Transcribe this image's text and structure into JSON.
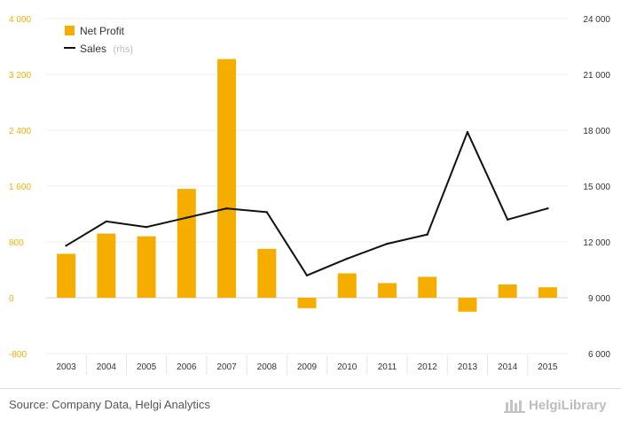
{
  "chart_data": {
    "type": "bar",
    "title": "",
    "categories": [
      "2003",
      "2004",
      "2005",
      "2006",
      "2007",
      "2008",
      "2009",
      "2010",
      "2011",
      "2012",
      "2013",
      "2014",
      "2015"
    ],
    "series": [
      {
        "name": "Net Profit",
        "type": "bar",
        "axis": "left",
        "color": "#f5ae00",
        "values": [
          630,
          920,
          880,
          1560,
          3420,
          700,
          -150,
          350,
          210,
          300,
          -200,
          190,
          150
        ]
      },
      {
        "name": "Sales",
        "name_suffix": "(rhs)",
        "type": "line",
        "axis": "right",
        "color": "#111111",
        "values": [
          11800,
          13100,
          12800,
          13300,
          13800,
          13600,
          10200,
          11100,
          11900,
          12400,
          17900,
          13200,
          13800
        ]
      }
    ],
    "left_axis": {
      "min": -800,
      "max": 4000,
      "ticks": [
        "-800",
        "0",
        "800",
        "1 600",
        "2 400",
        "3 200",
        "4 000"
      ],
      "tick_values": [
        -800,
        0,
        800,
        1600,
        2400,
        3200,
        4000
      ]
    },
    "right_axis": {
      "min": 6000,
      "max": 24000,
      "ticks": [
        "6 000",
        "9 000",
        "12 000",
        "15 000",
        "18 000",
        "21 000",
        "24 000"
      ],
      "tick_values": [
        6000,
        9000,
        12000,
        15000,
        18000,
        21000,
        24000
      ]
    },
    "grid": true,
    "legend_position": "top-left"
  },
  "footer": {
    "source": "Source: Company Data, Helgi Analytics",
    "brand": "HelgiLibrary"
  }
}
